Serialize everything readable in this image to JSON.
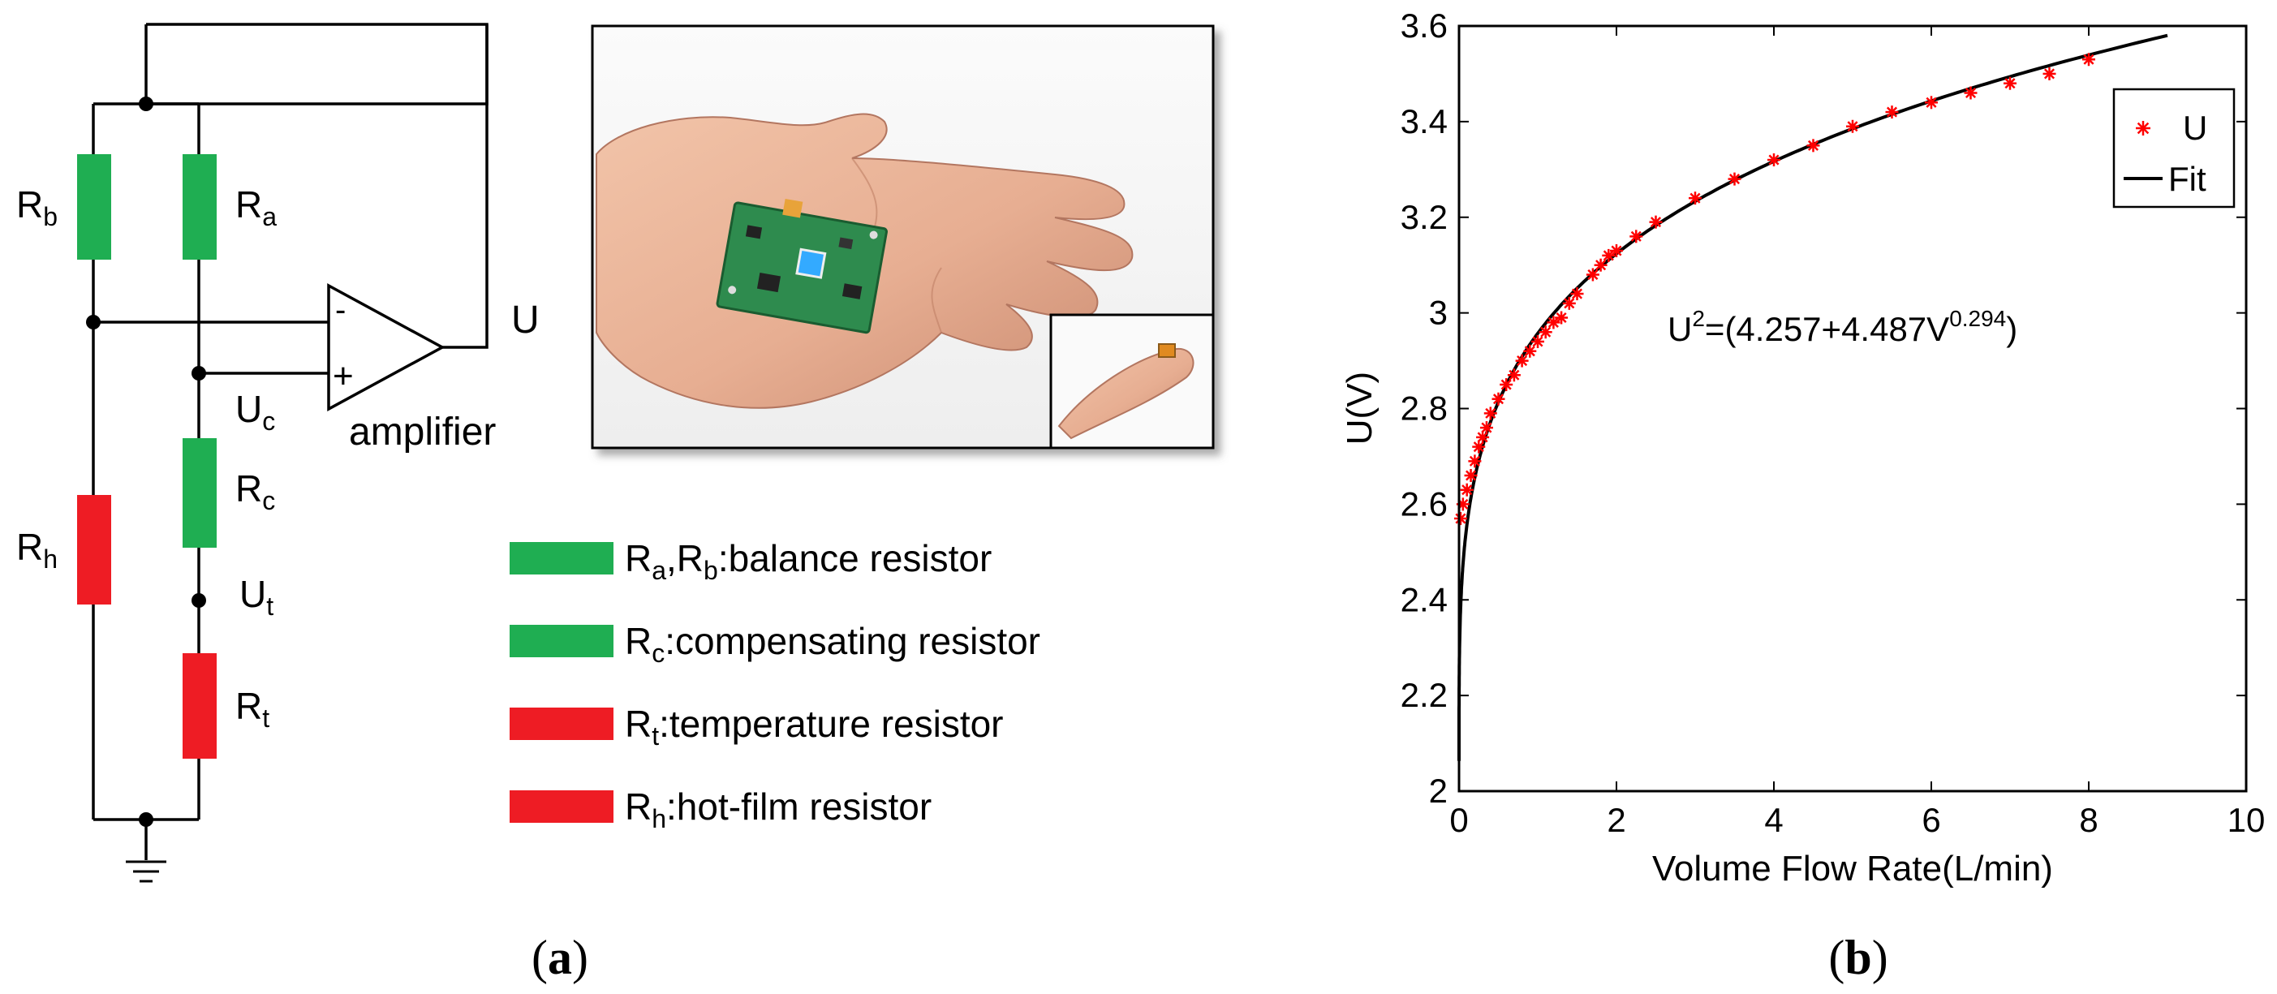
{
  "panel_a": {
    "caption_open": "(",
    "caption_letter": "a",
    "caption_close": ")",
    "circuit": {
      "labels": {
        "rb": {
          "main": "R",
          "sub": "b"
        },
        "ra": {
          "main": "R",
          "sub": "a"
        },
        "rh": {
          "main": "R",
          "sub": "h"
        },
        "rc": {
          "main": "R",
          "sub": "c"
        },
        "rt": {
          "main": "R",
          "sub": "t"
        },
        "uc": {
          "main": "U",
          "sub": "c"
        },
        "ut": {
          "main": "U",
          "sub": "t"
        }
      },
      "output_label": "U",
      "amplifier_label": "amplifier",
      "minus_sign": "-",
      "plus_sign": "+",
      "colors": {
        "balance": "#1fae52",
        "heated": "#ee1c24",
        "wire": "#000000"
      }
    },
    "legend": [
      {
        "color": "#1fae52",
        "parts": [
          {
            "t": "R"
          },
          {
            "t": "a",
            "sub": true
          },
          {
            "t": ",R"
          },
          {
            "t": "b",
            "sub": true
          },
          {
            "t": ":balance resistor"
          }
        ]
      },
      {
        "color": "#1fae52",
        "parts": [
          {
            "t": "R"
          },
          {
            "t": "c",
            "sub": true
          },
          {
            "t": ":compensating resistor"
          }
        ]
      },
      {
        "color": "#ee1c24",
        "parts": [
          {
            "t": "R"
          },
          {
            "t": "t",
            "sub": true
          },
          {
            "t": ":temperature resistor"
          }
        ]
      },
      {
        "color": "#ee1c24",
        "parts": [
          {
            "t": "R"
          },
          {
            "t": "h",
            "sub": true
          },
          {
            "t": ":hot-film resistor"
          }
        ]
      }
    ]
  },
  "panel_b": {
    "caption_open": "(",
    "caption_letter": "b",
    "caption_close": ")"
  },
  "chart_data": {
    "type": "scatter",
    "xlabel": "Volume Flow Rate(L/min)",
    "ylabel": "U(V)",
    "xlim": [
      0,
      10
    ],
    "ylim": [
      2,
      3.6
    ],
    "xticks": [
      "0",
      "2",
      "4",
      "6",
      "8",
      "10"
    ],
    "yticks": [
      "2",
      "2.2",
      "2.4",
      "2.6",
      "2.8",
      "3",
      "3.2",
      "3.4",
      "3.6"
    ],
    "annotation": {
      "base": "U",
      "sup1": "2",
      "mid": "=(4.257+4.487V",
      "sup2": "0.294",
      "end": ")"
    },
    "fit_params": {
      "a": 4.257,
      "b": 4.487,
      "n": 0.294,
      "x_range": [
        0,
        9
      ]
    },
    "legend_position": "top-right",
    "series": [
      {
        "name": "U",
        "marker": "*",
        "color": "#ff0000",
        "x": [
          0.02,
          0.05,
          0.1,
          0.15,
          0.2,
          0.25,
          0.3,
          0.35,
          0.4,
          0.5,
          0.6,
          0.7,
          0.8,
          0.9,
          1.0,
          1.1,
          1.2,
          1.3,
          1.4,
          1.5,
          1.7,
          1.8,
          1.9,
          2.0,
          2.25,
          2.5,
          3.0,
          3.5,
          4.0,
          4.5,
          5.0,
          5.5,
          6.0,
          6.5,
          7.0,
          7.5,
          8.0
        ],
        "y": [
          2.57,
          2.6,
          2.63,
          2.66,
          2.69,
          2.72,
          2.74,
          2.76,
          2.79,
          2.82,
          2.85,
          2.87,
          2.9,
          2.92,
          2.94,
          2.96,
          2.98,
          2.99,
          3.02,
          3.04,
          3.08,
          3.1,
          3.12,
          3.13,
          3.16,
          3.19,
          3.24,
          3.28,
          3.32,
          3.35,
          3.39,
          3.42,
          3.44,
          3.46,
          3.48,
          3.5,
          3.53
        ]
      },
      {
        "name": "Fit",
        "color": "#000000"
      }
    ]
  }
}
